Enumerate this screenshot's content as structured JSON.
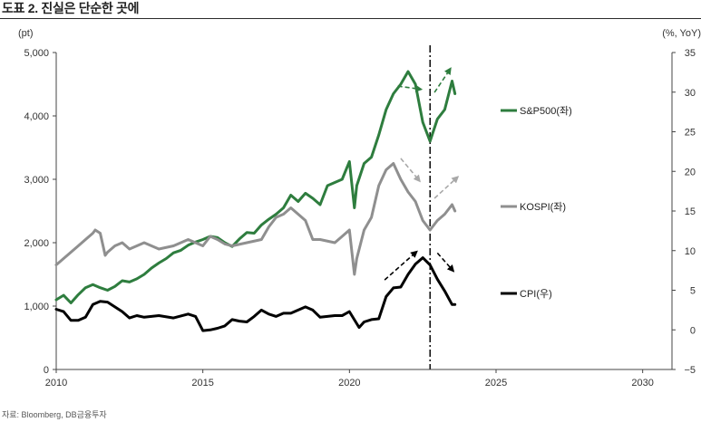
{
  "title": "도표 2. 진실은 단순한 곳에",
  "source": "자료: Bloomberg, DB금융투자",
  "chart_data": {
    "type": "line",
    "y_left_unit": "(pt)",
    "y_right_unit": "(%, YoY)",
    "xlim": [
      2010,
      2031
    ],
    "ylim_left": [
      0,
      5000
    ],
    "ylim_right": [
      -5,
      35
    ],
    "x_ticks": [
      2010,
      2015,
      2020,
      2025,
      2030
    ],
    "y_left_ticks": [
      0,
      1000,
      2000,
      3000,
      4000,
      5000
    ],
    "y_left_tick_labels": [
      "0",
      "1,000",
      "2,000",
      "3,000",
      "4,000",
      "5,000"
    ],
    "y_right_ticks": [
      -5,
      0,
      5,
      10,
      15,
      20,
      25,
      30,
      35
    ],
    "y_right_tick_labels": [
      "−5",
      "0",
      "5",
      "10",
      "15",
      "20",
      "25",
      "30",
      "35"
    ],
    "vline_x": 2022.75,
    "series": [
      {
        "name": "S&P500(좌)",
        "axis": "left",
        "color": "#2e7d3e",
        "x": [
          2010.0,
          2010.25,
          2010.5,
          2010.75,
          2011.0,
          2011.25,
          2011.5,
          2011.75,
          2012.0,
          2012.25,
          2012.5,
          2012.75,
          2013.0,
          2013.25,
          2013.5,
          2013.75,
          2014.0,
          2014.25,
          2014.5,
          2014.75,
          2015.0,
          2015.25,
          2015.5,
          2015.75,
          2016.0,
          2016.25,
          2016.5,
          2016.75,
          2017.0,
          2017.25,
          2017.5,
          2017.75,
          2018.0,
          2018.25,
          2018.5,
          2018.75,
          2019.0,
          2019.25,
          2019.5,
          2019.75,
          2020.0,
          2020.17,
          2020.25,
          2020.5,
          2020.75,
          2021.0,
          2021.25,
          2021.5,
          2021.75,
          2022.0,
          2022.25,
          2022.5,
          2022.75,
          2023.0,
          2023.25,
          2023.5,
          2023.6
        ],
        "y": [
          1100,
          1170,
          1050,
          1180,
          1290,
          1340,
          1290,
          1250,
          1310,
          1400,
          1380,
          1430,
          1500,
          1600,
          1680,
          1750,
          1840,
          1880,
          1960,
          2010,
          2050,
          2100,
          2080,
          2000,
          1940,
          2060,
          2160,
          2150,
          2280,
          2370,
          2450,
          2550,
          2750,
          2650,
          2780,
          2700,
          2600,
          2900,
          2950,
          3000,
          3280,
          2550,
          2900,
          3250,
          3350,
          3700,
          4100,
          4350,
          4500,
          4700,
          4500,
          3900,
          3600,
          3950,
          4100,
          4550,
          4350
        ]
      },
      {
        "name": "KOSPI(좌)",
        "axis": "left",
        "color": "#8f8f8f",
        "x": [
          2010.0,
          2010.25,
          2010.5,
          2010.75,
          2011.0,
          2011.25,
          2011.33,
          2011.5,
          2011.67,
          2011.75,
          2012.0,
          2012.25,
          2012.5,
          2012.75,
          2013.0,
          2013.5,
          2014.0,
          2014.5,
          2015.0,
          2015.25,
          2015.5,
          2015.75,
          2016.0,
          2016.5,
          2017.0,
          2017.25,
          2017.5,
          2017.75,
          2018.0,
          2018.25,
          2018.5,
          2018.75,
          2019.0,
          2019.5,
          2019.75,
          2020.0,
          2020.17,
          2020.25,
          2020.5,
          2020.75,
          2021.0,
          2021.25,
          2021.5,
          2021.75,
          2022.0,
          2022.25,
          2022.5,
          2022.75,
          2023.0,
          2023.25,
          2023.5,
          2023.6
        ],
        "y": [
          1650,
          1750,
          1850,
          1950,
          2050,
          2150,
          2200,
          2150,
          1800,
          1850,
          1950,
          2000,
          1900,
          1950,
          2000,
          1900,
          1950,
          2050,
          1950,
          2100,
          2050,
          1980,
          1950,
          2000,
          2050,
          2250,
          2400,
          2450,
          2550,
          2450,
          2350,
          2050,
          2050,
          2000,
          2100,
          2200,
          1500,
          1750,
          2200,
          2400,
          2900,
          3150,
          3250,
          3000,
          2800,
          2650,
          2350,
          2200,
          2350,
          2450,
          2600,
          2500
        ]
      },
      {
        "name": "CPI(우)",
        "axis": "right",
        "color": "#000000",
        "x": [
          2010.0,
          2010.25,
          2010.5,
          2010.75,
          2011.0,
          2011.25,
          2011.5,
          2011.75,
          2012.0,
          2012.25,
          2012.5,
          2012.75,
          2013.0,
          2013.5,
          2014.0,
          2014.5,
          2014.75,
          2015.0,
          2015.25,
          2015.5,
          2015.75,
          2016.0,
          2016.25,
          2016.5,
          2016.75,
          2017.0,
          2017.25,
          2017.5,
          2017.75,
          2018.0,
          2018.5,
          2018.75,
          2019.0,
          2019.5,
          2019.75,
          2020.0,
          2020.33,
          2020.5,
          2020.75,
          2021.0,
          2021.25,
          2021.5,
          2021.75,
          2022.0,
          2022.25,
          2022.5,
          2022.75,
          2023.0,
          2023.25,
          2023.5,
          2023.6
        ],
        "y": [
          2.6,
          2.3,
          1.2,
          1.2,
          1.6,
          3.2,
          3.6,
          3.5,
          2.9,
          2.3,
          1.5,
          1.8,
          1.6,
          1.8,
          1.5,
          2.0,
          1.7,
          -0.1,
          0.0,
          0.2,
          0.5,
          1.3,
          1.1,
          1.0,
          1.7,
          2.5,
          2.0,
          1.7,
          2.1,
          2.1,
          2.9,
          2.5,
          1.6,
          1.8,
          1.8,
          2.3,
          0.3,
          1.0,
          1.3,
          1.4,
          4.2,
          5.3,
          5.4,
          7.0,
          8.3,
          9.1,
          8.2,
          6.4,
          4.9,
          3.2,
          3.2
        ]
      }
    ],
    "annotation_arrows": [
      {
        "from": [
          2021.65,
          4470
        ],
        "to": [
          2022.45,
          4420
        ],
        "color": "#2e7d3e"
      },
      {
        "from": [
          2022.9,
          4370
        ],
        "to": [
          2023.45,
          4750
        ],
        "color": "#2e7d3e"
      },
      {
        "from": [
          2021.75,
          3330
        ],
        "to": [
          2022.4,
          2970
        ],
        "color": "#a8a8a8"
      },
      {
        "from": [
          2022.9,
          2700
        ],
        "to": [
          2023.7,
          3040
        ],
        "color": "#a8a8a8"
      },
      {
        "from": [
          2021.2,
          6.3
        ],
        "to": [
          2022.3,
          9.9
        ],
        "color": "#000000"
      },
      {
        "from": [
          2023.0,
          9.7
        ],
        "to": [
          2023.55,
          7.4
        ],
        "color": "#000000"
      }
    ]
  }
}
